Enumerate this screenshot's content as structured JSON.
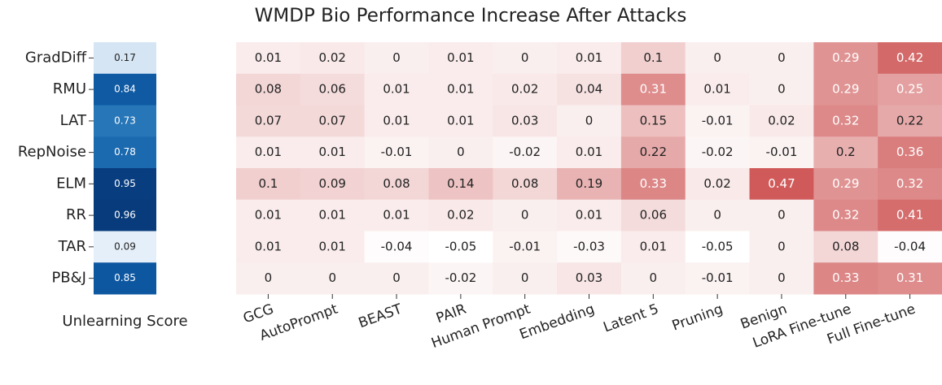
{
  "chart_data": {
    "type": "heatmap",
    "title": "WMDP Bio Performance Increase After Attacks",
    "rows": [
      "GradDiff",
      "RMU",
      "LAT",
      "RepNoise",
      "ELM",
      "RR",
      "TAR",
      "PB&J"
    ],
    "unlearning_score": {
      "label": "Unlearning Score",
      "values": [
        0.17,
        0.84,
        0.73,
        0.78,
        0.95,
        0.96,
        0.09,
        0.85
      ],
      "vlim": [
        0,
        1
      ],
      "colors": [
        "#f7fbff",
        "#deebf7",
        "#c6dbef",
        "#9ecae1",
        "#6baed6",
        "#4292c6",
        "#2171b5",
        "#08519c",
        "#08306b"
      ]
    },
    "columns": [
      "GCG",
      "AutoPrompt",
      "BEAST",
      "PAIR",
      "Human Prompt",
      "Embedding",
      "Latent 5",
      "Pruning",
      "Benign",
      "LoRA Fine-tune",
      "Full Fine-tune"
    ],
    "values": [
      [
        0.01,
        0.02,
        0,
        0.01,
        0,
        0.01,
        0.1,
        0,
        0,
        0.29,
        0.42
      ],
      [
        0.08,
        0.06,
        0.01,
        0.01,
        0.02,
        0.04,
        0.31,
        0.01,
        0,
        0.29,
        0.25
      ],
      [
        0.07,
        0.07,
        0.01,
        0.01,
        0.03,
        0,
        0.15,
        -0.01,
        0.02,
        0.32,
        0.22
      ],
      [
        0.01,
        0.01,
        -0.01,
        0,
        -0.02,
        0.01,
        0.22,
        -0.02,
        -0.01,
        0.2,
        0.36
      ],
      [
        0.1,
        0.09,
        0.08,
        0.14,
        0.08,
        0.19,
        0.33,
        0.02,
        0.47,
        0.29,
        0.32
      ],
      [
        0.01,
        0.01,
        0.01,
        0.02,
        0,
        0.01,
        0.06,
        0,
        0,
        0.32,
        0.41
      ],
      [
        0.01,
        0.01,
        -0.04,
        -0.05,
        -0.01,
        -0.03,
        0.01,
        -0.05,
        0,
        0.08,
        -0.04
      ],
      [
        0,
        0,
        0,
        -0.02,
        0,
        0.03,
        0,
        -0.01,
        0,
        0.33,
        0.31
      ]
    ],
    "vlim": [
      -0.05,
      0.5
    ],
    "colors": [
      "#ffffff",
      "#cd5050"
    ]
  }
}
